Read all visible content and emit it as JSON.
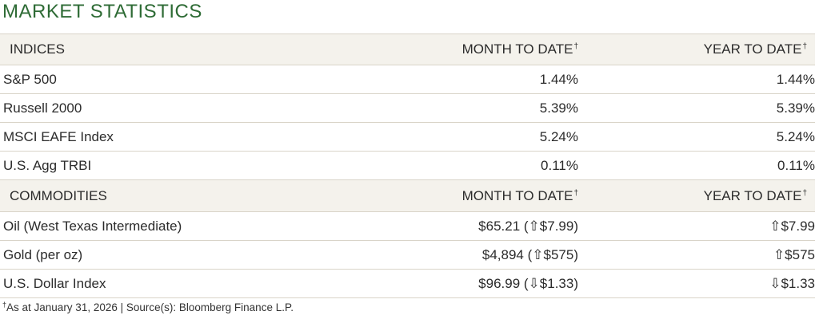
{
  "title": "MARKET STATISTICS",
  "indices": {
    "header": {
      "name": "INDICES",
      "mtd": "MONTH TO DATE",
      "ytd": "YEAR TO DATE",
      "mark": "†"
    },
    "rows": [
      {
        "name": "S&P 500",
        "mtd": "1.44%",
        "ytd": "1.44%"
      },
      {
        "name": "Russell 2000",
        "mtd": "5.39%",
        "ytd": "5.39%"
      },
      {
        "name": "MSCI EAFE Index",
        "mtd": "5.24%",
        "ytd": "5.24%"
      },
      {
        "name": "U.S. Agg TRBI",
        "mtd": "0.11%",
        "ytd": "0.11%"
      }
    ]
  },
  "commodities": {
    "header": {
      "name": "COMMODITIES",
      "mtd": "MONTH TO DATE",
      "ytd": "YEAR TO DATE",
      "mark": "†"
    },
    "rows": [
      {
        "name": "Oil (West Texas Intermediate)",
        "mtd": "$65.21 (⇧$7.99)",
        "ytd": "⇧$7.99"
      },
      {
        "name": "Gold (per oz)",
        "mtd": "$4,894 (⇧$575)",
        "ytd": "⇧$575"
      },
      {
        "name": "U.S. Dollar Index",
        "mtd": "$96.99 (⇩$1.33)",
        "ytd": "⇩$1.33"
      }
    ]
  },
  "footnote": {
    "mark": "†",
    "text": "As at January 31, 2026 | Source(s): Bloomberg Finance L.P."
  },
  "colors": {
    "title": "#2e6b35",
    "header_bg": "#f4f2ec",
    "rule": "#d9d4c8"
  }
}
